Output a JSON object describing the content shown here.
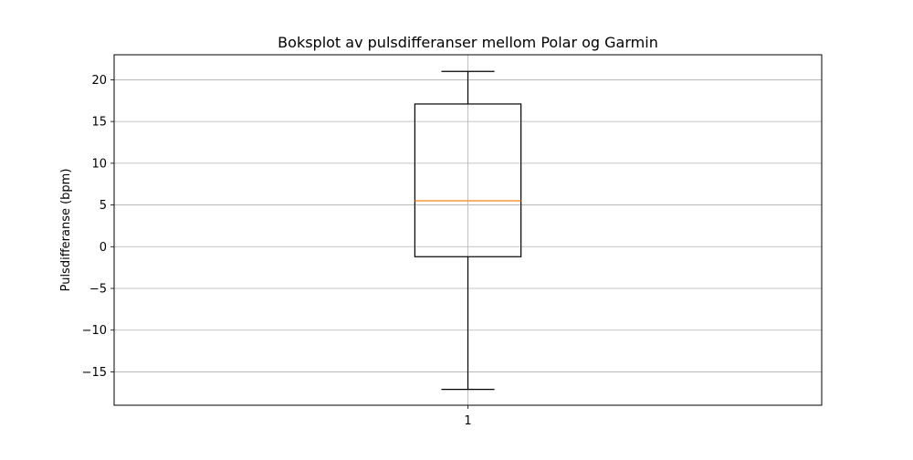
{
  "chart_data": {
    "type": "box",
    "title": "Boksplot av pulsdifferanser mellom Polar og Garmin",
    "xlabel": "",
    "ylabel": "Pulsdifferanse (bpm)",
    "categories": [
      "1"
    ],
    "ylim": [
      -19,
      23
    ],
    "yticks": [
      -15,
      -10,
      -5,
      0,
      5,
      10,
      15,
      20
    ],
    "ytick_labels": [
      "−15",
      "−10",
      "−5",
      "0",
      "5",
      "10",
      "15",
      "20"
    ],
    "grid": true,
    "boxes": [
      {
        "category": "1",
        "whisker_low": -17.1,
        "q1": -1.2,
        "median": 5.5,
        "q3": 17.1,
        "whisker_high": 21.0
      }
    ],
    "colors": {
      "box": "#000000",
      "median": "#ff7f0e",
      "grid": "#b0b0b0"
    }
  }
}
